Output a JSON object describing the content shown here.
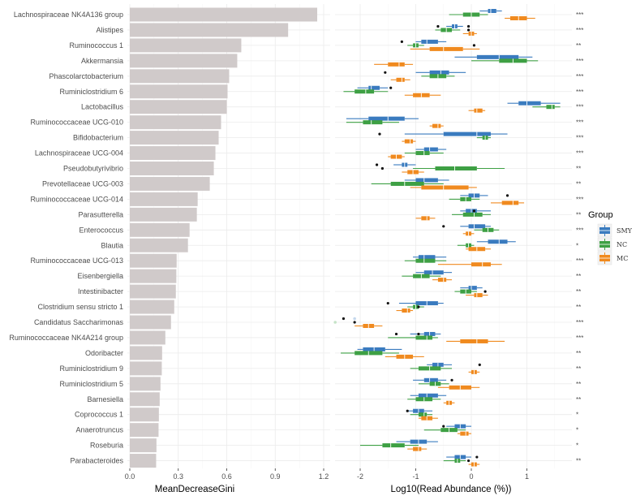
{
  "chart_data": [
    {
      "type": "bar",
      "orientation": "horizontal",
      "title": "",
      "xlabel": "MeanDecreaseGini",
      "ylabel": "",
      "xlim": [
        0,
        1.23
      ],
      "xticks": [
        0.0,
        0.3,
        0.6,
        0.9,
        1.2
      ],
      "xtick_labels": [
        "0.0",
        "0.3",
        "0.6",
        "0.9",
        "1.2"
      ],
      "grid": true,
      "bar_color": "#d0caca",
      "categories": [
        "Lachnospiraceae NK4A136 group",
        "Alistipes",
        "Ruminococcus 1",
        "Akkermansia",
        "Phascolarctobacterium",
        "Ruminiclostridium 6",
        "Lactobacillus",
        "Ruminococcaceae UCG-010",
        "Bifidobacterium",
        "Lachnospiraceae UCG-004",
        "Pseudobutyrivibrio",
        "Prevotellaceae UCG-003",
        "Ruminococcaceae UCG-014",
        "Parasutterella",
        "Enterococcus",
        "Blautia",
        "Ruminococcaceae UCG-013",
        "Eisenbergiella",
        "Intestinibacter",
        "Clostridium sensu stricto 1",
        "Candidatus Saccharimonas",
        "Ruminococcaceae NK4A214 group",
        "Odoribacter",
        "Ruminiclostridium 9",
        "Ruminiclostridium 5",
        "Barnesiella",
        "Coprococcus 1",
        "Anaerotruncus",
        "Roseburia",
        "Parabacteroides"
      ],
      "values": [
        1.16,
        0.98,
        0.69,
        0.665,
        0.615,
        0.605,
        0.6,
        0.565,
        0.55,
        0.53,
        0.52,
        0.495,
        0.42,
        0.415,
        0.37,
        0.36,
        0.29,
        0.288,
        0.285,
        0.275,
        0.255,
        0.22,
        0.2,
        0.198,
        0.19,
        0.185,
        0.18,
        0.178,
        0.165,
        0.163
      ]
    },
    {
      "type": "boxplot",
      "orientation": "horizontal",
      "title": "",
      "xlabel": "Log10(Read Abundance (%))",
      "ylabel": "",
      "xlim": [
        -2.45,
        1.72
      ],
      "xticks": [
        -2,
        -1,
        0,
        1
      ],
      "xtick_labels": [
        "-2",
        "-1",
        "0",
        "1"
      ],
      "grid": true,
      "legend": {
        "title": "Group",
        "position": "right",
        "entries": [
          {
            "name": "SMY",
            "color": "#3a7bbf"
          },
          {
            "name": "NC",
            "color": "#3ea044"
          },
          {
            "name": "MC",
            "color": "#f08a1f"
          }
        ]
      },
      "significance": [
        "***",
        "***",
        "**",
        "***",
        "***",
        "***",
        "***",
        "***",
        "***",
        "***",
        "**",
        "**",
        "***",
        "**",
        "***",
        "*",
        "***",
        "**",
        "**",
        "**",
        "***",
        "***",
        "**",
        "**",
        "**",
        "**",
        "*",
        "*",
        "*",
        "**"
      ],
      "series": [
        {
          "name": "SMY",
          "color": "#3a7bbf",
          "boxes": [
            [
              0.15,
              0.3,
              0.35,
              0.45,
              0.55
            ],
            [
              -0.45,
              -0.35,
              -0.3,
              -0.25,
              -0.15
            ],
            [
              -1.0,
              -0.9,
              -0.8,
              -0.6,
              -0.45
            ],
            [
              -0.3,
              0.1,
              0.5,
              0.85,
              1.1
            ],
            [
              -1.0,
              -0.75,
              -0.55,
              -0.4,
              -0.1
            ],
            [
              -2.05,
              -1.85,
              -1.8,
              -1.65,
              -1.5
            ],
            [
              0.65,
              0.85,
              1.0,
              1.25,
              1.6
            ],
            [
              -2.25,
              -1.85,
              -1.5,
              -1.2,
              -0.95
            ],
            [
              -1.2,
              -0.5,
              0.1,
              0.35,
              0.65
            ],
            [
              -1.0,
              -0.85,
              -0.75,
              -0.6,
              -0.45
            ],
            [
              -1.4,
              -1.25,
              -1.2,
              -1.15,
              -1.0
            ],
            [
              -1.2,
              -1.0,
              -0.85,
              -0.6,
              -0.4
            ],
            [
              -0.2,
              -0.05,
              0.05,
              0.15,
              0.3
            ],
            [
              -0.2,
              -0.1,
              0.0,
              0.1,
              0.35
            ],
            [
              -0.2,
              -0.05,
              0.05,
              0.25,
              0.35
            ],
            [
              0.1,
              0.3,
              0.5,
              0.65,
              0.8
            ],
            [
              -1.05,
              -0.95,
              -0.85,
              -0.65,
              -0.45
            ],
            [
              -1.0,
              -0.85,
              -0.7,
              -0.5,
              -0.35
            ],
            [
              -0.2,
              -0.05,
              0.0,
              0.1,
              0.2
            ],
            [
              -1.3,
              -1.0,
              -0.8,
              -0.6,
              -0.5
            ],
            [
              -2.1,
              -2.1,
              -2.1,
              -2.1,
              -2.1
            ],
            [
              -1.1,
              -0.85,
              -0.75,
              -0.65,
              -0.55
            ],
            [
              -2.05,
              -1.95,
              -1.75,
              -1.55,
              -1.25
            ],
            [
              -0.8,
              -0.7,
              -0.6,
              -0.5,
              -0.35
            ],
            [
              -1.05,
              -0.85,
              -0.75,
              -0.6,
              -0.45
            ],
            [
              -1.1,
              -0.95,
              -0.8,
              -0.6,
              -0.45
            ],
            [
              -1.15,
              -1.05,
              -0.95,
              -0.85,
              -0.7
            ],
            [
              -0.45,
              -0.3,
              -0.2,
              -0.1,
              0.0
            ],
            [
              -1.35,
              -1.1,
              -0.95,
              -0.8,
              -0.6
            ],
            [
              -0.45,
              -0.3,
              -0.2,
              -0.1,
              0.0
            ]
          ],
          "outliers": [
            [],
            [
              -0.6,
              -0.05
            ],
            [
              -1.25
            ],
            [],
            [
              -1.55
            ],
            [
              -1.45
            ],
            [],
            [],
            [
              -1.65
            ],
            [],
            [
              -1.7
            ],
            [],
            [
              0.65
            ],
            [
              0.05
            ],
            [
              -0.5
            ],
            [],
            [],
            [],
            [],
            [
              -1.5
            ],
            [
              -2.3
            ],
            [
              -1.35,
              -0.95
            ],
            [],
            [
              0.15
            ],
            [
              -0.35
            ],
            [],
            [
              -1.15
            ],
            [
              -0.5
            ],
            [],
            [
              0.1
            ]
          ]
        },
        {
          "name": "NC",
          "color": "#3ea044",
          "boxes": [
            [
              -0.4,
              -0.15,
              0.0,
              0.15,
              0.3
            ],
            [
              -0.65,
              -0.55,
              -0.45,
              -0.35,
              -0.2
            ],
            [
              -1.15,
              -1.05,
              -1.0,
              -0.95,
              -0.85
            ],
            [
              0.0,
              0.5,
              0.75,
              1.0,
              1.2
            ],
            [
              -0.9,
              -0.75,
              -0.6,
              -0.45,
              -0.3
            ],
            [
              -2.3,
              -2.1,
              -1.9,
              -1.75,
              -1.5
            ],
            [
              1.1,
              1.35,
              1.45,
              1.5,
              1.6
            ],
            [
              -2.25,
              -1.95,
              -1.8,
              -1.6,
              -1.3
            ],
            [
              0.1,
              0.2,
              0.25,
              0.3,
              0.35
            ],
            [
              -1.2,
              -1.0,
              -0.85,
              -0.75,
              -0.5
            ],
            [
              -1.05,
              -0.65,
              -0.3,
              0.1,
              0.6
            ],
            [
              -1.8,
              -1.45,
              -1.2,
              -0.85,
              -0.5
            ],
            [
              -0.4,
              -0.2,
              -0.1,
              0.0,
              0.15
            ],
            [
              -0.35,
              -0.15,
              0.05,
              0.2,
              0.35
            ],
            [
              0.05,
              0.2,
              0.3,
              0.4,
              0.5
            ],
            [
              -0.25,
              -0.1,
              -0.05,
              0.0,
              0.05
            ],
            [
              -1.2,
              -1.0,
              -0.85,
              -0.65,
              -0.45
            ],
            [
              -1.25,
              -1.05,
              -0.9,
              -0.75,
              -0.55
            ],
            [
              -0.3,
              -0.2,
              -0.1,
              0.0,
              0.1
            ],
            [
              -1.15,
              -1.05,
              -1.0,
              -0.95,
              -0.85
            ],
            [
              -2.45,
              -2.45,
              -2.45,
              -2.45,
              -2.45
            ],
            [
              -1.5,
              -1.0,
              -0.8,
              -0.7,
              -0.6
            ],
            [
              -2.35,
              -2.1,
              -1.85,
              -1.6,
              -1.3
            ],
            [
              -1.1,
              -0.95,
              -0.75,
              -0.55,
              -0.35
            ],
            [
              -0.95,
              -0.75,
              -0.65,
              -0.55,
              -0.4
            ],
            [
              -1.15,
              -1.0,
              -0.85,
              -0.7,
              -0.55
            ],
            [
              -1.1,
              -0.95,
              -0.85,
              -0.8,
              -0.7
            ],
            [
              -0.85,
              -0.55,
              -0.4,
              -0.25,
              -0.1
            ],
            [
              -2.0,
              -1.6,
              -1.45,
              -1.2,
              -0.95
            ],
            [
              -0.5,
              -0.3,
              -0.25,
              -0.2,
              -0.1
            ]
          ],
          "outliers": [
            [],
            [
              -0.05
            ],
            [
              0.05
            ],
            [],
            [],
            [],
            [],
            [],
            [],
            [],
            [
              -1.6
            ],
            [],
            [],
            [],
            [],
            [],
            [],
            [],
            [
              0.25
            ],
            [
              -0.95
            ],
            [
              -2.1
            ],
            [],
            [],
            [],
            [],
            [],
            [],
            [],
            [],
            [
              -0.05
            ]
          ]
        },
        {
          "name": "MC",
          "color": "#f08a1f",
          "boxes": [
            [
              0.6,
              0.7,
              0.85,
              1.0,
              1.15
            ],
            [
              -0.15,
              -0.05,
              0.0,
              0.05,
              0.1
            ],
            [
              -1.1,
              -0.75,
              -0.5,
              -0.15,
              0.15
            ],
            [
              -1.75,
              -1.5,
              -1.3,
              -1.2,
              -1.05
            ],
            [
              -1.45,
              -1.35,
              -1.25,
              -1.2,
              -1.1
            ],
            [
              -1.2,
              -1.05,
              -0.9,
              -0.75,
              -0.55
            ],
            [
              -0.05,
              0.05,
              0.1,
              0.2,
              0.25
            ],
            [
              -0.75,
              -0.7,
              -0.6,
              -0.55,
              -0.5
            ],
            [
              -1.25,
              -1.2,
              -1.1,
              -1.05,
              -1.0
            ],
            [
              -1.5,
              -1.45,
              -1.35,
              -1.25,
              -1.2
            ],
            [
              -1.25,
              -1.15,
              -1.05,
              -0.95,
              -0.85
            ],
            [
              -1.1,
              -0.9,
              -0.5,
              -0.05,
              0.1
            ],
            [
              0.35,
              0.55,
              0.75,
              0.85,
              0.95
            ],
            [
              -1.0,
              -0.9,
              -0.8,
              -0.75,
              -0.65
            ],
            [
              -0.15,
              -0.1,
              -0.05,
              0.0,
              0.05
            ],
            [
              -0.1,
              -0.05,
              0.1,
              0.25,
              0.35
            ],
            [
              -0.6,
              0.0,
              0.2,
              0.35,
              0.55
            ],
            [
              -0.7,
              -0.6,
              -0.5,
              -0.45,
              -0.35
            ],
            [
              -0.1,
              0.05,
              0.1,
              0.2,
              0.3
            ],
            [
              -1.35,
              -1.25,
              -1.15,
              -1.1,
              -1.05
            ],
            [
              -2.1,
              -1.95,
              -1.85,
              -1.75,
              -1.6
            ],
            [
              -0.45,
              -0.2,
              0.1,
              0.3,
              0.6
            ],
            [
              -1.55,
              -1.35,
              -1.2,
              -1.05,
              -0.85
            ],
            [
              -0.05,
              0.0,
              0.05,
              0.1,
              0.15
            ],
            [
              -0.6,
              -0.4,
              -0.2,
              0.0,
              0.15
            ],
            [
              -0.5,
              -0.45,
              -0.4,
              -0.35,
              -0.3
            ],
            [
              -0.95,
              -0.9,
              -0.8,
              -0.7,
              -0.6
            ],
            [
              -0.25,
              -0.2,
              -0.1,
              -0.05,
              0.0
            ],
            [
              -1.15,
              -1.05,
              -0.95,
              -0.9,
              -0.8
            ],
            [
              -0.05,
              0.0,
              0.05,
              0.1,
              0.15
            ]
          ],
          "outliers": [
            [],
            [],
            [],
            [],
            [],
            [],
            [],
            [],
            [],
            [],
            [],
            [],
            [],
            [],
            [],
            [],
            [],
            [],
            [],
            [],
            [],
            [],
            [],
            [],
            [],
            [],
            [],
            [],
            [],
            []
          ]
        }
      ]
    }
  ]
}
